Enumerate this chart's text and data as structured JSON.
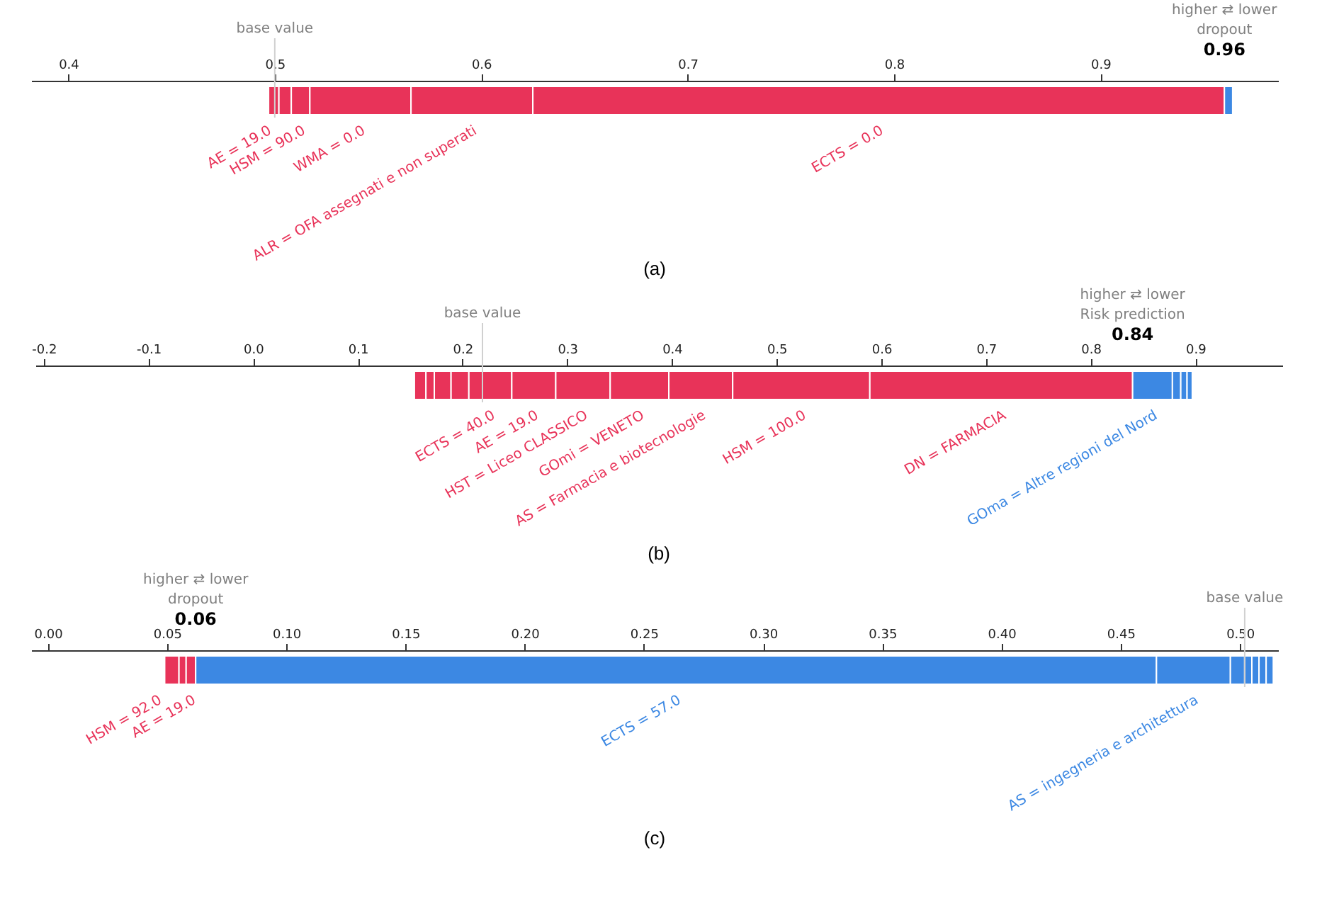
{
  "chart_data": [
    {
      "type": "bar",
      "orientation": "horizontal",
      "categories": [
        null
      ],
      "xlim": [
        0.382,
        0.986
      ],
      "xticks": [
        0.4,
        0.5,
        0.6,
        0.7,
        0.8,
        0.9
      ],
      "series": [
        {
          "color": "#e83359",
          "values": [
            0.005
          ],
          "base": [
            0.497
          ]
        },
        {
          "name": "AE = 19.0",
          "color": "#e83359",
          "values": [
            0.006
          ],
          "base": [
            0.502
          ]
        },
        {
          "name": "HSM = 90.0",
          "color": "#e83359",
          "values": [
            0.009
          ],
          "base": [
            0.508
          ]
        },
        {
          "name": "WMA = 0.0",
          "color": "#e83359",
          "values": [
            0.049
          ],
          "base": [
            0.517
          ]
        },
        {
          "name": "ALR = OFA assegnati e non superati",
          "color": "#e83359",
          "values": [
            0.059
          ],
          "base": [
            0.566
          ]
        },
        {
          "name": "ECTS = 0.0",
          "color": "#e83359",
          "values": [
            0.335
          ],
          "base": [
            0.625
          ]
        },
        {
          "color": "#3c88e3",
          "values": [
            0.004
          ],
          "base": [
            0.96
          ]
        }
      ],
      "ref_lines": [
        {
          "axis": "x",
          "value": 0.5,
          "label": "base value"
        }
      ],
      "annotations": [
        "higher ⇄ lower",
        "dropout",
        "0.96",
        "(a)"
      ]
    },
    {
      "type": "bar",
      "orientation": "horizontal",
      "categories": [
        null
      ],
      "xlim": [
        -0.208,
        0.983
      ],
      "xticks": [
        -0.2,
        -0.1,
        {
          "value": 0,
          "label": "0.0"
        },
        0.1,
        0.2,
        0.3,
        0.4,
        0.5,
        0.6,
        0.7,
        0.8,
        0.9
      ],
      "series": [
        {
          "color": "#e83359",
          "values": [
            0.011
          ],
          "base": [
            0.154
          ]
        },
        {
          "color": "#e83359",
          "values": [
            0.008
          ],
          "base": [
            0.165
          ]
        },
        {
          "color": "#e83359",
          "values": [
            0.016
          ],
          "base": [
            0.173
          ]
        },
        {
          "color": "#e83359",
          "values": [
            0.017
          ],
          "base": [
            0.189
          ]
        },
        {
          "name": "ECTS = 40.0",
          "color": "#e83359",
          "values": [
            0.041
          ],
          "base": [
            0.206
          ]
        },
        {
          "name": "AE = 19.0",
          "color": "#e83359",
          "values": [
            0.042
          ],
          "base": [
            0.247
          ]
        },
        {
          "name": "HST = Liceo CLASSICO",
          "color": "#e83359",
          "values": [
            0.052
          ],
          "base": [
            0.289
          ]
        },
        {
          "name": "GOmi = VENETO",
          "color": "#e83359",
          "values": [
            0.056
          ],
          "base": [
            0.341
          ]
        },
        {
          "name": "AS = Farmacia e biotecnologie",
          "color": "#e83359",
          "values": [
            0.061
          ],
          "base": [
            0.397
          ]
        },
        {
          "name": "HSM = 100.0",
          "color": "#e83359",
          "values": [
            0.131
          ],
          "base": [
            0.458
          ]
        },
        {
          "name": "DN = FARMACIA",
          "color": "#e83359",
          "values": [
            0.251
          ],
          "base": [
            0.589
          ]
        },
        {
          "name": "GOma = Altre regioni del Nord",
          "color": "#3c88e3",
          "values": [
            0.038
          ],
          "base": [
            0.84
          ]
        },
        {
          "color": "#3c88e3",
          "values": [
            0.008
          ],
          "base": [
            0.878
          ]
        },
        {
          "color": "#3c88e3",
          "values": [
            0.006
          ],
          "base": [
            0.886
          ]
        },
        {
          "color": "#3c88e3",
          "values": [
            0.005
          ],
          "base": [
            0.892
          ]
        }
      ],
      "ref_lines": [
        {
          "axis": "x",
          "value": 0.219,
          "label": "base value"
        }
      ],
      "annotations": [
        "higher ⇄ lower",
        "Risk prediction",
        "0.84",
        "(b)"
      ]
    },
    {
      "type": "bar",
      "orientation": "horizontal",
      "categories": [
        null
      ],
      "xlim": [
        -0.007,
        0.516
      ],
      "xticks": [
        {
          "value": 0,
          "label": "0.00"
        },
        {
          "value": 0.05,
          "label": "0.05"
        },
        {
          "value": 0.1,
          "label": "0.10"
        },
        {
          "value": 0.15,
          "label": "0.15"
        },
        {
          "value": 0.2,
          "label": "0.20"
        },
        {
          "value": 0.25,
          "label": "0.25"
        },
        {
          "value": 0.3,
          "label": "0.30"
        },
        {
          "value": 0.35,
          "label": "0.35"
        },
        {
          "value": 0.4,
          "label": "0.40"
        },
        {
          "value": 0.45,
          "label": "0.45"
        },
        {
          "value": 0.5,
          "label": "0.50"
        }
      ],
      "series": [
        {
          "color": "#e83359",
          "values": [
            0.006
          ],
          "base": [
            0.049
          ]
        },
        {
          "name": "HSM = 92.0",
          "color": "#e83359",
          "values": [
            0.003
          ],
          "base": [
            0.055
          ]
        },
        {
          "name": "AE = 19.0",
          "color": "#e83359",
          "values": [
            0.004
          ],
          "base": [
            0.058
          ]
        },
        {
          "name": "ECTS = 57.0",
          "color": "#3c88e3",
          "values": [
            0.403
          ],
          "base": [
            0.062
          ]
        },
        {
          "name": "AS = ingegneria e architettura",
          "color": "#3c88e3",
          "values": [
            0.031
          ],
          "base": [
            0.465
          ]
        },
        {
          "color": "#3c88e3",
          "values": [
            0.006
          ],
          "base": [
            0.496
          ]
        },
        {
          "color": "#3c88e3",
          "values": [
            0.003
          ],
          "base": [
            0.502
          ]
        },
        {
          "color": "#3c88e3",
          "values": [
            0.003
          ],
          "base": [
            0.505
          ]
        },
        {
          "color": "#3c88e3",
          "values": [
            0.003
          ],
          "base": [
            0.508
          ]
        },
        {
          "color": "#3c88e3",
          "values": [
            0.003
          ],
          "base": [
            0.511
          ]
        }
      ],
      "ref_lines": [
        {
          "axis": "x",
          "value": 0.502,
          "label": "base value"
        }
      ],
      "annotations": [
        "higher ⇄ lower",
        "dropout",
        "0.06",
        "(c)"
      ]
    }
  ]
}
